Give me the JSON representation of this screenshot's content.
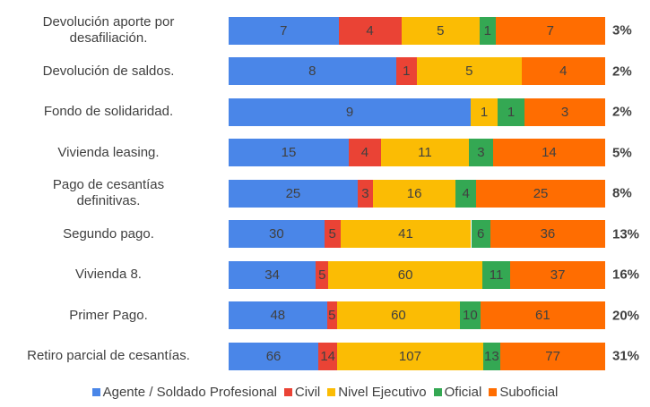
{
  "chart_data": {
    "type": "bar",
    "orientation": "horizontal",
    "stacked": "percent",
    "categories": [
      "Devolución aporte por\ndesafiliación.",
      "Devolución de saldos.",
      "Fondo de solidaridad.",
      "Vivienda leasing.",
      "Pago de cesantías\ndefinitivas.",
      "Segundo pago.",
      "Vivienda 8.",
      "Primer Pago.",
      "Retiro parcial de cesantías."
    ],
    "series": [
      {
        "name": "Agente / Soldado Profesional",
        "color": "#4a86e8",
        "values": [
          7,
          8,
          9,
          15,
          25,
          30,
          34,
          48,
          66
        ]
      },
      {
        "name": "Civil",
        "color": "#ea4335",
        "values": [
          4,
          1,
          null,
          4,
          3,
          5,
          5,
          5,
          14
        ]
      },
      {
        "name": "Nivel Ejecutivo",
        "color": "#fbbc04",
        "values": [
          5,
          5,
          1,
          11,
          16,
          41,
          60,
          60,
          107
        ]
      },
      {
        "name": "Oficial",
        "color": "#34a853",
        "values": [
          1,
          null,
          1,
          3,
          4,
          6,
          11,
          10,
          13
        ]
      },
      {
        "name": "Suboficial",
        "color": "#ff6d01",
        "values": [
          7,
          4,
          3,
          14,
          25,
          36,
          37,
          61,
          77
        ]
      }
    ],
    "row_share": {
      "values": [
        3,
        2,
        2,
        5,
        8,
        13,
        16,
        20,
        31
      ],
      "value_labels": [
        "3%",
        "2%",
        "2%",
        "5%",
        "8%",
        "13%",
        "16%",
        "20%",
        "31%"
      ]
    },
    "legend": "bottom"
  }
}
